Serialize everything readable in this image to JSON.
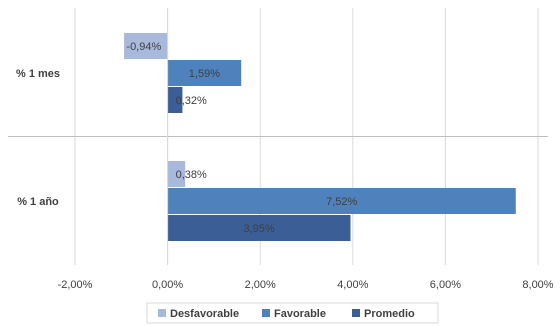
{
  "chart_data": {
    "type": "bar",
    "orientation": "horizontal",
    "categories": [
      "% 1 mes",
      "% 1 año"
    ],
    "series": [
      {
        "name": "Desfavorable",
        "values": [
          -0.94,
          0.38
        ],
        "labels": [
          "-0,94%",
          "0,38%"
        ],
        "color": "#a9b9dc"
      },
      {
        "name": "Favorable",
        "values": [
          1.59,
          7.52
        ],
        "labels": [
          "1,59%",
          "7,52%"
        ],
        "color": "#4f81bd"
      },
      {
        "name": "Promedio",
        "values": [
          0.32,
          3.95
        ],
        "labels": [
          "0,32%",
          "3,95%"
        ],
        "color": "#3a5e95"
      }
    ],
    "xlim": [
      -2,
      8
    ],
    "xticks": [
      -2,
      0,
      2,
      4,
      6,
      8
    ],
    "xtick_labels": [
      "-2,00%",
      "0,00%",
      "2,00%",
      "4,00%",
      "6,00%",
      "8,00%"
    ],
    "grid": true,
    "legend": "bottom",
    "title": "",
    "xlabel": "",
    "ylabel": ""
  }
}
